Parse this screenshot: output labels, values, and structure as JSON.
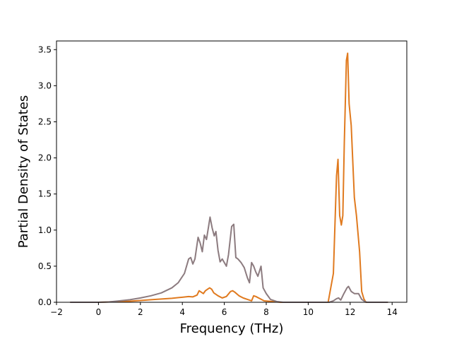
{
  "chart_data": {
    "type": "line",
    "title": "",
    "xlabel": "Frequency (THz)",
    "ylabel": "Partial Density of States",
    "xlim": [
      -2,
      14.7
    ],
    "ylim": [
      0,
      3.62
    ],
    "xticks": [
      -2,
      0,
      2,
      4,
      6,
      8,
      10,
      12,
      14
    ],
    "xtick_labels": [
      "−2",
      "0",
      "2",
      "4",
      "6",
      "8",
      "10",
      "12",
      "14"
    ],
    "yticks": [
      0,
      0.5,
      1.0,
      1.5,
      2.0,
      2.5,
      3.0,
      3.5
    ],
    "ytick_labels": [
      "0.0",
      "0.5",
      "1.0",
      "1.5",
      "2.0",
      "2.5",
      "3.0",
      "3.5"
    ],
    "grid": false,
    "legend": "none",
    "series": [
      {
        "color": "#e07a1f",
        "points": [
          [
            -1.35,
            0
          ],
          [
            0,
            0
          ],
          [
            0.5,
            0.005
          ],
          [
            1,
            0.01
          ],
          [
            1.5,
            0.015
          ],
          [
            2,
            0.025
          ],
          [
            2.5,
            0.035
          ],
          [
            3,
            0.045
          ],
          [
            3.5,
            0.055
          ],
          [
            4,
            0.07
          ],
          [
            4.3,
            0.08
          ],
          [
            4.5,
            0.075
          ],
          [
            4.7,
            0.1
          ],
          [
            4.8,
            0.16
          ],
          [
            4.9,
            0.14
          ],
          [
            5,
            0.12
          ],
          [
            5.1,
            0.16
          ],
          [
            5.2,
            0.18
          ],
          [
            5.3,
            0.2
          ],
          [
            5.4,
            0.18
          ],
          [
            5.5,
            0.13
          ],
          [
            5.7,
            0.09
          ],
          [
            5.9,
            0.06
          ],
          [
            6.1,
            0.08
          ],
          [
            6.3,
            0.15
          ],
          [
            6.4,
            0.16
          ],
          [
            6.5,
            0.14
          ],
          [
            6.7,
            0.09
          ],
          [
            6.9,
            0.06
          ],
          [
            7.1,
            0.04
          ],
          [
            7.3,
            0.02
          ],
          [
            7.4,
            0.09
          ],
          [
            7.5,
            0.08
          ],
          [
            7.7,
            0.05
          ],
          [
            7.9,
            0.02
          ],
          [
            8.3,
            0.01
          ],
          [
            8.7,
            0
          ],
          [
            10.95,
            0
          ],
          [
            11.2,
            0.4
          ],
          [
            11.35,
            1.75
          ],
          [
            11.42,
            1.98
          ],
          [
            11.5,
            1.2
          ],
          [
            11.58,
            1.07
          ],
          [
            11.65,
            1.2
          ],
          [
            11.72,
            2.2
          ],
          [
            11.82,
            3.35
          ],
          [
            11.88,
            3.45
          ],
          [
            11.95,
            2.75
          ],
          [
            12.05,
            2.45
          ],
          [
            12.2,
            1.45
          ],
          [
            12.3,
            1.2
          ],
          [
            12.45,
            0.7
          ],
          [
            12.55,
            0.15
          ],
          [
            12.65,
            0.05
          ],
          [
            12.75,
            0
          ],
          [
            13.8,
            0
          ]
        ]
      },
      {
        "color": "#8c7b7f",
        "points": [
          [
            -1.35,
            0
          ],
          [
            0,
            0
          ],
          [
            0.5,
            0.005
          ],
          [
            1,
            0.02
          ],
          [
            1.5,
            0.035
          ],
          [
            2,
            0.06
          ],
          [
            2.5,
            0.09
          ],
          [
            3,
            0.13
          ],
          [
            3.5,
            0.2
          ],
          [
            3.8,
            0.27
          ],
          [
            4.1,
            0.4
          ],
          [
            4.3,
            0.6
          ],
          [
            4.4,
            0.62
          ],
          [
            4.5,
            0.53
          ],
          [
            4.6,
            0.6
          ],
          [
            4.75,
            0.9
          ],
          [
            4.85,
            0.82
          ],
          [
            4.95,
            0.7
          ],
          [
            5.05,
            0.93
          ],
          [
            5.15,
            0.87
          ],
          [
            5.25,
            1.05
          ],
          [
            5.32,
            1.18
          ],
          [
            5.42,
            1.03
          ],
          [
            5.52,
            0.92
          ],
          [
            5.6,
            0.98
          ],
          [
            5.7,
            0.72
          ],
          [
            5.8,
            0.56
          ],
          [
            5.9,
            0.6
          ],
          [
            6,
            0.55
          ],
          [
            6.1,
            0.5
          ],
          [
            6.2,
            0.66
          ],
          [
            6.35,
            1.05
          ],
          [
            6.45,
            1.08
          ],
          [
            6.55,
            0.62
          ],
          [
            6.65,
            0.6
          ],
          [
            6.8,
            0.55
          ],
          [
            6.95,
            0.48
          ],
          [
            7.1,
            0.34
          ],
          [
            7.2,
            0.27
          ],
          [
            7.3,
            0.55
          ],
          [
            7.4,
            0.5
          ],
          [
            7.5,
            0.42
          ],
          [
            7.6,
            0.36
          ],
          [
            7.75,
            0.5
          ],
          [
            7.85,
            0.2
          ],
          [
            8,
            0.12
          ],
          [
            8.2,
            0.04
          ],
          [
            8.5,
            0.01
          ],
          [
            8.8,
            0
          ],
          [
            11,
            0
          ],
          [
            11.2,
            0.02
          ],
          [
            11.35,
            0.05
          ],
          [
            11.45,
            0.06
          ],
          [
            11.55,
            0.03
          ],
          [
            11.7,
            0.12
          ],
          [
            11.85,
            0.2
          ],
          [
            11.92,
            0.22
          ],
          [
            12.05,
            0.15
          ],
          [
            12.2,
            0.12
          ],
          [
            12.4,
            0.12
          ],
          [
            12.55,
            0.04
          ],
          [
            12.7,
            0.01
          ],
          [
            12.8,
            0
          ],
          [
            13.8,
            0
          ]
        ]
      }
    ]
  }
}
